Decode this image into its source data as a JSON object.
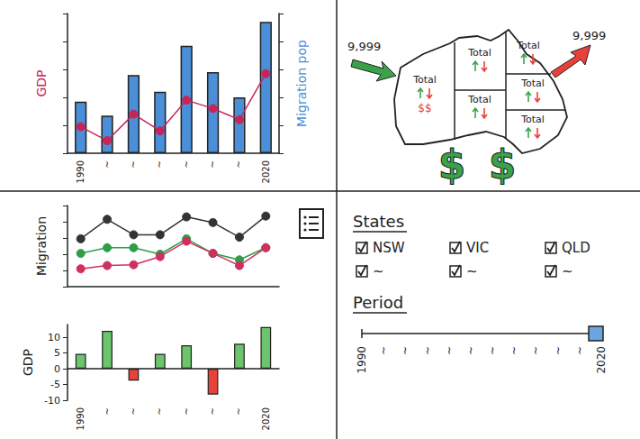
{
  "chart_data": [
    {
      "type": "bar",
      "categories": [
        "1990",
        "~",
        "~",
        "~",
        "~",
        "~",
        "~",
        "2020"
      ],
      "ylabel": "GDP",
      "y2label": "Migration pop",
      "series": [
        {
          "type": "bar",
          "axis": "y2",
          "color": "#4a8fd8",
          "values": [
            3.7,
            2.7,
            5.6,
            4.4,
            7.7,
            5.8,
            4.0,
            9.4
          ]
        },
        {
          "type": "line",
          "color": "#c8245a",
          "marker": "circle",
          "values": [
            1.9,
            0.9,
            2.8,
            1.6,
            3.8,
            3.2,
            2.4,
            5.7
          ]
        }
      ],
      "ylim": [
        0,
        10
      ],
      "yticks": [
        0,
        2,
        4,
        6,
        8,
        10
      ],
      "y2lim": [
        0,
        10
      ],
      "y2ticks": [
        0,
        2,
        4,
        6,
        8,
        10
      ],
      "tick_labels": "x",
      "grid": false
    },
    {
      "type": "line",
      "categories": [
        null,
        null,
        null,
        null,
        null,
        null,
        null,
        null
      ],
      "ylabel": "Migration",
      "series": [
        {
          "color": "#333333",
          "marker": "circle",
          "values": [
            5.9,
            8.3,
            6.4,
            6.4,
            8.6,
            7.9,
            6.1,
            8.7
          ]
        },
        {
          "color": "#2e9e4a",
          "marker": "circle",
          "values": [
            4.1,
            4.8,
            4.8,
            4.0,
            5.9,
            4.1,
            3.3,
            4.8
          ]
        },
        {
          "color": "#d0305e",
          "marker": "circle",
          "values": [
            2.2,
            2.6,
            2.7,
            3.7,
            5.6,
            4.1,
            2.6,
            4.8
          ]
        }
      ],
      "ylim": [
        0,
        10
      ],
      "yticks": [
        0,
        2,
        4,
        6,
        8,
        10
      ],
      "tick_labels": false,
      "grid": false
    },
    {
      "type": "bar",
      "categories": [
        "1990",
        "~",
        "~",
        "~",
        "~",
        "~",
        "~",
        "2020"
      ],
      "ylabel": "GDP",
      "values": [
        4.7,
        12,
        -3.8,
        4.7,
        7.4,
        -8.2,
        7.9,
        13.2
      ],
      "colors": [
        "#6cc46c",
        "#6cc46c",
        "#e8413a",
        "#6cc46c",
        "#6cc46c",
        "#e8413a",
        "#6cc46c",
        "#6cc46c"
      ],
      "ylim": [
        -10,
        14
      ],
      "yticks": [
        -10,
        -5,
        0,
        5,
        10
      ],
      "grid": false
    }
  ],
  "map_panel": {
    "inflow": {
      "label": "9,999",
      "color": "#3aa34a"
    },
    "outflow": {
      "label": "9,999",
      "color": "#e8413a"
    },
    "regions": [
      {
        "label": "Total",
        "money": "$$"
      },
      {
        "label": "Total"
      },
      {
        "label": "Total"
      },
      {
        "label": "Total"
      },
      {
        "label": "Total"
      },
      {
        "label": "Total"
      }
    ],
    "currency_symbols": [
      "$",
      "$"
    ]
  },
  "filters_panel": {
    "states": {
      "title": "States",
      "options": [
        {
          "label": "NSW",
          "checked": true
        },
        {
          "label": "VIC",
          "checked": true
        },
        {
          "label": "QLD",
          "checked": true
        },
        {
          "label": "~",
          "checked": true
        },
        {
          "label": "~",
          "checked": true
        },
        {
          "label": "~",
          "checked": true
        }
      ]
    },
    "period": {
      "title": "Period",
      "labels": [
        "1990",
        "~",
        "~",
        "~",
        "~",
        "~",
        "~",
        "~",
        "~",
        "~",
        "~",
        "2020"
      ]
    }
  }
}
